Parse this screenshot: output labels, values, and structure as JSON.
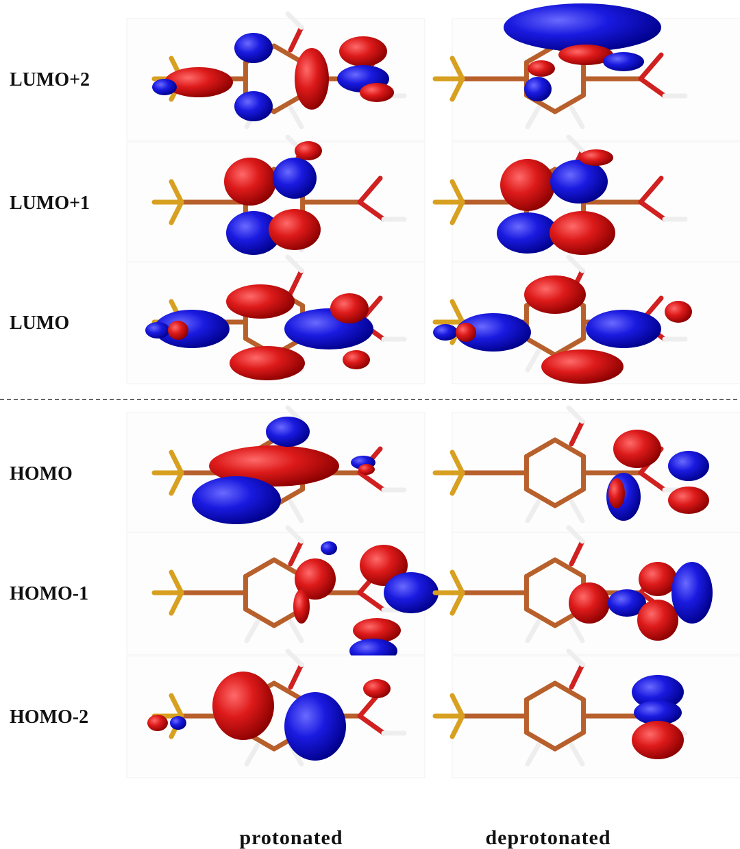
{
  "rows": [
    {
      "label": "LUMO+2"
    },
    {
      "label": "LUMO+1"
    },
    {
      "label": "LUMO"
    },
    {
      "label": "HOMO"
    },
    {
      "label": "HOMO-1"
    },
    {
      "label": "HOMO-2"
    }
  ],
  "columns": [
    "protonated",
    "deprotonated"
  ]
}
